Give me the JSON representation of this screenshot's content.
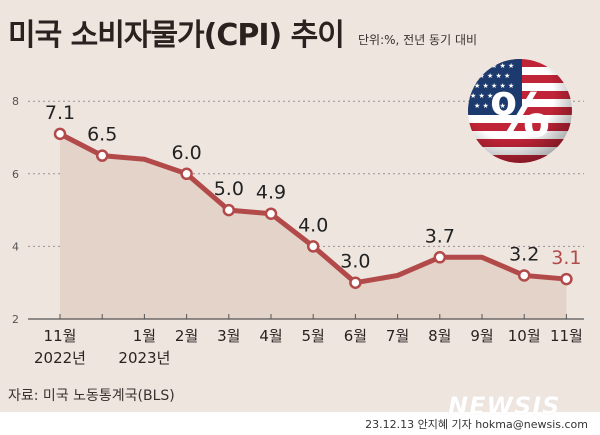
{
  "header": {
    "title": "미국 소비자물가(CPI) 추이",
    "subtitle": "단위:%, 전년 동기 대비"
  },
  "footer": {
    "source": "자료: 미국 노동통계국(BLS)",
    "credit": "23.12.13 안지혜 기자 hokma@newsis.com",
    "logo": "NEWSIS"
  },
  "colors": {
    "background": "#eee5df",
    "line": "#b24a4a",
    "area": "#e3d3c9",
    "last_label": "#b24a4a"
  },
  "badge": {
    "icon": "us-flag-percent-icon",
    "glyph": "%"
  },
  "chart_data": {
    "type": "line",
    "title": "미국 소비자물가(CPI) 추이",
    "subtitle": "단위:%, 전년 동기 대비",
    "xlabel": "",
    "ylabel": "%",
    "ylim": [
      2,
      8
    ],
    "yticks": [
      2,
      4,
      6,
      8
    ],
    "grid": true,
    "categories": [
      "2022-11",
      "2022-12",
      "2023-01",
      "2023-02",
      "2023-03",
      "2023-04",
      "2023-05",
      "2023-06",
      "2023-07",
      "2023-08",
      "2023-09",
      "2023-10",
      "2023-11"
    ],
    "tick_labels": [
      "11월",
      "",
      "1월",
      "2월",
      "3월",
      "4월",
      "5월",
      "6월",
      "7월",
      "8월",
      "9월",
      "10월",
      "11월"
    ],
    "year_labels": [
      {
        "index": 0,
        "label": "2022년"
      },
      {
        "index": 2,
        "label": "2023년"
      }
    ],
    "values": [
      7.1,
      6.5,
      6.4,
      6.0,
      5.0,
      4.9,
      4.0,
      3.0,
      3.2,
      3.7,
      3.7,
      3.2,
      3.1
    ],
    "labeled_points": [
      {
        "index": 0,
        "label": "7.1"
      },
      {
        "index": 1,
        "label": "6.5"
      },
      {
        "index": 3,
        "label": "6.0"
      },
      {
        "index": 4,
        "label": "5.0"
      },
      {
        "index": 5,
        "label": "4.9"
      },
      {
        "index": 6,
        "label": "4.0"
      },
      {
        "index": 7,
        "label": "3.0"
      },
      {
        "index": 9,
        "label": "3.7"
      },
      {
        "index": 11,
        "label": "3.2"
      },
      {
        "index": 12,
        "label": "3.1"
      }
    ]
  }
}
